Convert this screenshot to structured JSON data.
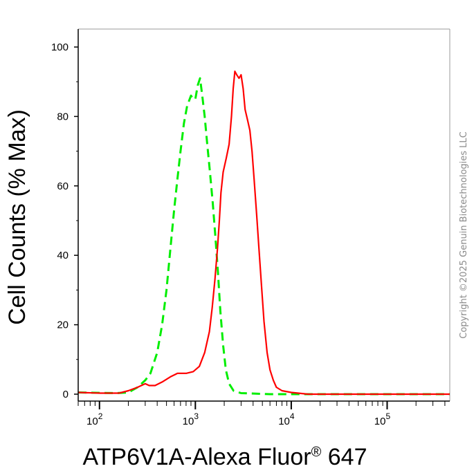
{
  "chart_data": {
    "type": "line",
    "xscale": "log",
    "xlim": [
      60,
      450000
    ],
    "ylim": [
      0,
      100
    ],
    "xlabel": "ATP6V1A-Alexa Fluor® 647",
    "ylabel": "Cell Counts (% Max)",
    "xticks": [
      {
        "value": 100,
        "base": "10",
        "exp": "2"
      },
      {
        "value": 1000,
        "base": "10",
        "exp": "3"
      },
      {
        "value": 10000,
        "base": "10",
        "exp": "4"
      },
      {
        "value": 100000,
        "base": "10",
        "exp": "5"
      }
    ],
    "yticks": [
      0,
      20,
      40,
      60,
      80,
      100
    ],
    "series": [
      {
        "color": "#00ee00",
        "dash": "dashed",
        "points": [
          [
            60,
            0.5
          ],
          [
            150,
            0.3
          ],
          [
            200,
            0.5
          ],
          [
            250,
            2
          ],
          [
            300,
            4
          ],
          [
            340,
            6
          ],
          [
            400,
            12
          ],
          [
            450,
            20
          ],
          [
            500,
            30
          ],
          [
            550,
            42
          ],
          [
            600,
            53
          ],
          [
            650,
            62
          ],
          [
            700,
            70
          ],
          [
            760,
            78
          ],
          [
            820,
            83
          ],
          [
            900,
            86
          ],
          [
            950,
            85
          ],
          [
            1000,
            85
          ],
          [
            1060,
            89
          ],
          [
            1120,
            91
          ],
          [
            1180,
            86
          ],
          [
            1250,
            80
          ],
          [
            1330,
            72
          ],
          [
            1420,
            64
          ],
          [
            1520,
            55
          ],
          [
            1620,
            45
          ],
          [
            1720,
            35
          ],
          [
            1820,
            24
          ],
          [
            1950,
            14
          ],
          [
            2080,
            7
          ],
          [
            2250,
            3
          ],
          [
            2500,
            1
          ],
          [
            3000,
            0.3
          ],
          [
            6000,
            0
          ],
          [
            450000,
            0
          ]
        ]
      },
      {
        "color": "#ff0000",
        "dash": "solid",
        "points": [
          [
            60,
            0.5
          ],
          [
            100,
            0.3
          ],
          [
            160,
            0.3
          ],
          [
            200,
            1
          ],
          [
            250,
            2
          ],
          [
            300,
            3
          ],
          [
            330,
            2.5
          ],
          [
            380,
            2.5
          ],
          [
            450,
            3.5
          ],
          [
            550,
            5
          ],
          [
            650,
            6
          ],
          [
            800,
            6
          ],
          [
            950,
            6.5
          ],
          [
            1100,
            8
          ],
          [
            1250,
            12
          ],
          [
            1400,
            18
          ],
          [
            1500,
            25
          ],
          [
            1600,
            33
          ],
          [
            1700,
            42
          ],
          [
            1780,
            50
          ],
          [
            1850,
            58
          ],
          [
            1950,
            64
          ],
          [
            2100,
            68
          ],
          [
            2250,
            72
          ],
          [
            2380,
            80
          ],
          [
            2480,
            88
          ],
          [
            2580,
            93
          ],
          [
            2700,
            92
          ],
          [
            2850,
            91
          ],
          [
            3000,
            92
          ],
          [
            3150,
            88
          ],
          [
            3300,
            82
          ],
          [
            3500,
            79
          ],
          [
            3700,
            76
          ],
          [
            3900,
            70
          ],
          [
            4100,
            62
          ],
          [
            4350,
            52
          ],
          [
            4600,
            42
          ],
          [
            4900,
            31
          ],
          [
            5200,
            21
          ],
          [
            5600,
            12
          ],
          [
            6000,
            7
          ],
          [
            6500,
            4
          ],
          [
            7000,
            2
          ],
          [
            8000,
            1
          ],
          [
            10000,
            0.5
          ],
          [
            15000,
            0
          ],
          [
            450000,
            0
          ]
        ]
      }
    ]
  },
  "watermark": {
    "copyright": "Copyright ©2025 Genuin Biotechnologies LLC"
  },
  "colors": {
    "control": "#00ee00",
    "sample": "#ff0000",
    "axis": "#000000",
    "frame": "#888888"
  }
}
